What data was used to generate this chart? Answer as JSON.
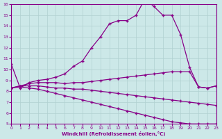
{
  "xlabel": "Windchill (Refroidissement éolien,°C)",
  "ylabel": "",
  "xlim": [
    0,
    23
  ],
  "ylim": [
    5,
    16
  ],
  "xticks": [
    0,
    1,
    2,
    3,
    4,
    5,
    6,
    7,
    8,
    9,
    10,
    11,
    12,
    13,
    14,
    15,
    16,
    17,
    18,
    19,
    20,
    21,
    22,
    23
  ],
  "yticks": [
    5,
    6,
    7,
    8,
    9,
    10,
    11,
    12,
    13,
    14,
    15,
    16
  ],
  "bg_color": "#cce8e8",
  "line_color": "#880088",
  "line1_x": [
    0,
    1,
    2,
    3,
    4,
    5,
    6,
    7,
    8,
    9,
    10,
    11,
    12,
    13,
    14,
    15,
    16,
    17,
    18,
    19,
    20,
    21,
    22,
    23
  ],
  "line1_y": [
    10.5,
    8.3,
    8.8,
    9.0,
    9.1,
    9.3,
    9.6,
    10.3,
    10.8,
    12.0,
    13.0,
    14.2,
    14.5,
    14.5,
    15.0,
    16.5,
    15.8,
    15.0,
    15.0,
    13.2,
    10.2,
    8.4,
    8.3,
    8.5
  ],
  "line2_x": [
    0,
    1,
    2,
    3,
    4,
    5,
    6,
    7,
    8,
    9,
    10,
    11,
    12,
    13,
    14,
    15,
    16,
    17,
    18,
    19,
    20,
    21,
    22,
    23
  ],
  "line2_y": [
    8.3,
    8.5,
    8.7,
    8.8,
    8.8,
    8.8,
    8.7,
    8.8,
    8.8,
    8.9,
    9.0,
    9.1,
    9.2,
    9.3,
    9.4,
    9.5,
    9.6,
    9.7,
    9.8,
    9.8,
    9.8,
    8.4,
    8.3,
    8.5
  ],
  "line3_x": [
    0,
    1,
    2,
    3,
    4,
    5,
    6,
    7,
    8,
    9,
    10,
    11,
    12,
    13,
    14,
    15,
    16,
    17,
    18,
    19,
    20,
    21,
    22,
    23
  ],
  "line3_y": [
    8.3,
    8.5,
    8.5,
    8.5,
    8.4,
    8.3,
    8.3,
    8.2,
    8.2,
    8.1,
    8.0,
    7.9,
    7.8,
    7.7,
    7.6,
    7.5,
    7.4,
    7.3,
    7.2,
    7.1,
    7.0,
    6.9,
    6.8,
    6.7
  ],
  "line4_x": [
    0,
    1,
    2,
    3,
    4,
    5,
    6,
    7,
    8,
    9,
    10,
    11,
    12,
    13,
    14,
    15,
    16,
    17,
    18,
    19,
    20,
    21,
    22,
    23
  ],
  "line4_y": [
    8.3,
    8.4,
    8.3,
    8.2,
    8.0,
    7.8,
    7.6,
    7.4,
    7.2,
    7.0,
    6.8,
    6.6,
    6.4,
    6.2,
    6.0,
    5.8,
    5.6,
    5.4,
    5.2,
    5.1,
    5.0,
    5.0,
    5.0,
    5.0
  ],
  "grid_color": "#b0d0d0",
  "marker": "+"
}
